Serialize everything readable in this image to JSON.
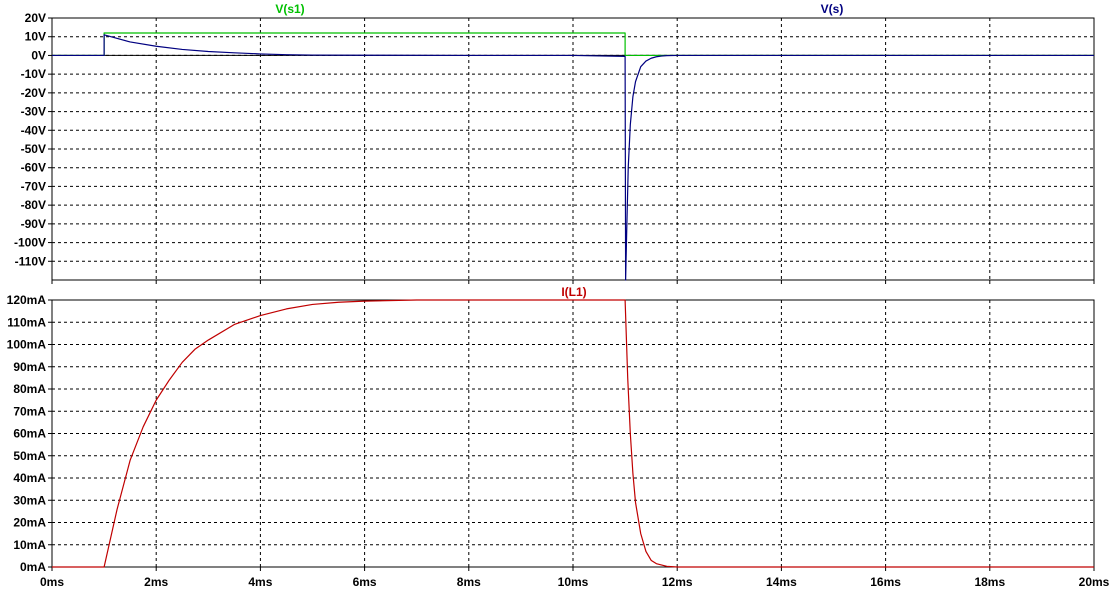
{
  "chart_data": [
    {
      "type": "line",
      "title": "",
      "xlabel": "",
      "ylabel": "",
      "xlim": [
        0,
        20
      ],
      "ylim": [
        -120,
        20
      ],
      "x_unit": "ms",
      "y_unit": "V",
      "grid": true,
      "x_ticks": [
        "0ms",
        "2ms",
        "4ms",
        "6ms",
        "8ms",
        "10ms",
        "12ms",
        "14ms",
        "16ms",
        "18ms",
        "20ms"
      ],
      "y_ticks": [
        "20V",
        "10V",
        "0V",
        "-10V",
        "-20V",
        "-30V",
        "-40V",
        "-50V",
        "-60V",
        "-70V",
        "-80V",
        "-90V",
        "-100V",
        "-110V"
      ],
      "series": [
        {
          "name": "V(s1)",
          "color": "#00c000",
          "x": [
            0,
            1,
            1,
            11,
            11,
            20
          ],
          "y": [
            0,
            0,
            12,
            12,
            0,
            0
          ]
        },
        {
          "name": "V(s)",
          "color": "#000080",
          "x": [
            0,
            1,
            1,
            1.5,
            2,
            2.5,
            3,
            3.5,
            4,
            4.5,
            5,
            6,
            8,
            10,
            11,
            11.01,
            11.03,
            11.06,
            11.1,
            11.15,
            11.2,
            11.3,
            11.4,
            11.5,
            11.6,
            11.7,
            11.8,
            12,
            14,
            20
          ],
          "y": [
            0,
            0,
            11,
            7.2,
            4.9,
            3.2,
            2.1,
            1.4,
            0.8,
            0.4,
            0.2,
            0.1,
            0,
            0,
            -0.5,
            -120,
            -95,
            -60,
            -37,
            -22,
            -14,
            -6,
            -3,
            -1.5,
            -0.7,
            -0.3,
            -0.1,
            0,
            0,
            0
          ]
        }
      ]
    },
    {
      "type": "line",
      "title": "",
      "xlabel": "",
      "ylabel": "",
      "xlim": [
        0,
        20
      ],
      "ylim": [
        0,
        120
      ],
      "x_unit": "ms",
      "y_unit": "mA",
      "grid": true,
      "x_ticks": [
        "0ms",
        "2ms",
        "4ms",
        "6ms",
        "8ms",
        "10ms",
        "12ms",
        "14ms",
        "16ms",
        "18ms",
        "20ms"
      ],
      "y_ticks": [
        "120mA",
        "110mA",
        "100mA",
        "90mA",
        "80mA",
        "70mA",
        "60mA",
        "50mA",
        "40mA",
        "30mA",
        "20mA",
        "10mA",
        "0mA"
      ],
      "series": [
        {
          "name": "I(L1)",
          "color": "#c00000",
          "x": [
            0,
            1,
            1.25,
            1.5,
            1.75,
            2,
            2.25,
            2.5,
            2.75,
            3,
            3.5,
            4,
            4.5,
            5,
            5.5,
            6,
            7,
            8,
            10,
            11,
            11.05,
            11.1,
            11.15,
            11.2,
            11.3,
            11.4,
            11.5,
            11.6,
            11.8,
            12,
            14,
            20
          ],
          "y": [
            0,
            0,
            26,
            48,
            63,
            75,
            84,
            92,
            98,
            102,
            109,
            113,
            116,
            118,
            119,
            119.5,
            120,
            120,
            120,
            120,
            85,
            60,
            42,
            29,
            15,
            7,
            3,
            1.5,
            0.3,
            0,
            0,
            0
          ]
        }
      ]
    }
  ]
}
